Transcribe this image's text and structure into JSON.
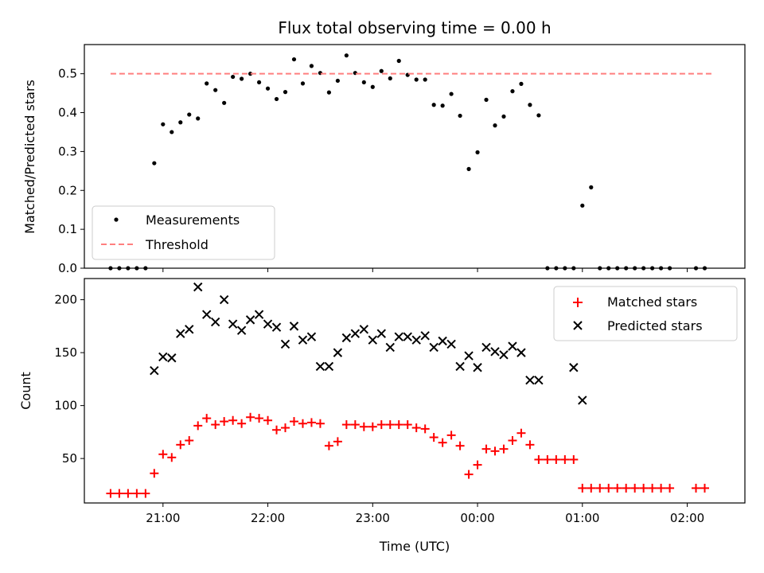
{
  "chart_data": [
    {
      "type": "scatter",
      "title": "Flux total observing time = 0.00 h",
      "ylabel": "Matched/Predicted stars",
      "xlim": [
        20.25,
        2.55
      ],
      "ylim": [
        0,
        0.575
      ],
      "yticks": [
        0.0,
        0.1,
        0.2,
        0.3,
        0.4,
        0.5
      ],
      "ytick_labels": [
        "0.0",
        "0.1",
        "0.2",
        "0.3",
        "0.4",
        "0.5"
      ],
      "legend": {
        "placement": "lower-left",
        "entries": [
          "Measurements",
          "Threshold"
        ]
      },
      "series": [
        {
          "name": "Measurements",
          "marker": "dot",
          "color": "#000000",
          "x": [
            "20:30",
            "20:35",
            "20:40",
            "20:45",
            "20:50",
            "20:55",
            "21:00",
            "21:05",
            "21:10",
            "21:15",
            "21:20",
            "21:25",
            "21:30",
            "21:35",
            "21:40",
            "21:45",
            "21:50",
            "21:55",
            "22:00",
            "22:05",
            "22:10",
            "22:15",
            "22:20",
            "22:25",
            "22:30",
            "22:35",
            "22:40",
            "22:45",
            "22:50",
            "22:55",
            "23:00",
            "23:05",
            "23:10",
            "23:15",
            "23:20",
            "23:25",
            "23:30",
            "23:35",
            "23:40",
            "23:45",
            "23:50",
            "23:55",
            "00:00",
            "00:05",
            "00:10",
            "00:15",
            "00:20",
            "00:25",
            "00:30",
            "00:35",
            "00:40",
            "00:45",
            "00:50",
            "00:55",
            "01:00",
            "01:05",
            "01:10",
            "01:15",
            "01:20",
            "01:25",
            "01:30",
            "01:35",
            "01:40",
            "01:45",
            "01:50",
            "02:05",
            "02:10"
          ],
          "y": [
            0,
            0,
            0,
            0,
            0,
            0.27,
            0.37,
            0.35,
            0.375,
            0.395,
            0.385,
            0.475,
            0.458,
            0.425,
            0.492,
            0.487,
            0.5,
            0.478,
            0.462,
            0.435,
            0.453,
            0.537,
            0.475,
            0.52,
            0.502,
            0.452,
            0.482,
            0.547,
            0.502,
            0.478,
            0.466,
            0.507,
            0.488,
            0.533,
            0.497,
            0.485,
            0.485,
            0.42,
            0.418,
            0.448,
            0.392,
            0.255,
            0.298,
            0.433,
            0.367,
            0.39,
            0.455,
            0.474,
            0.42,
            0.393,
            0,
            0,
            0,
            0,
            0.161,
            0.208,
            0,
            0,
            0,
            0,
            0,
            0,
            0,
            0,
            0,
            0,
            0
          ]
        },
        {
          "name": "Threshold",
          "style": "dashed",
          "color": "#ff7f7f",
          "x": [
            "20:30",
            "02:15"
          ],
          "y": [
            0.5,
            0.5
          ]
        }
      ]
    },
    {
      "type": "scatter",
      "xlabel": "Time (UTC)",
      "ylabel": "Count",
      "xlim": [
        20.25,
        2.55
      ],
      "ylim": [
        8,
        220
      ],
      "xticks": [
        "21:00",
        "22:00",
        "23:00",
        "00:00",
        "01:00",
        "02:00"
      ],
      "yticks": [
        50,
        100,
        150,
        200
      ],
      "ytick_labels": [
        "50",
        "100",
        "150",
        "200"
      ],
      "legend": {
        "placement": "upper-right",
        "entries": [
          "Matched stars",
          "Predicted stars"
        ]
      },
      "series": [
        {
          "name": "Matched stars",
          "marker": "plus",
          "color": "#ff0000",
          "x": [
            "20:30",
            "20:35",
            "20:40",
            "20:45",
            "20:50",
            "20:55",
            "21:00",
            "21:05",
            "21:10",
            "21:15",
            "21:20",
            "21:25",
            "21:30",
            "21:35",
            "21:40",
            "21:45",
            "21:50",
            "21:55",
            "22:00",
            "22:05",
            "22:10",
            "22:15",
            "22:20",
            "22:25",
            "22:30",
            "22:35",
            "22:40",
            "22:45",
            "22:50",
            "22:55",
            "23:00",
            "23:05",
            "23:10",
            "23:15",
            "23:20",
            "23:25",
            "23:30",
            "23:35",
            "23:40",
            "23:45",
            "23:50",
            "23:55",
            "00:00",
            "00:05",
            "00:10",
            "00:15",
            "00:20",
            "00:25",
            "00:30",
            "00:35",
            "00:40",
            "00:45",
            "00:50",
            "00:55",
            "01:00",
            "01:05",
            "01:10",
            "01:15",
            "01:20",
            "01:25",
            "01:30",
            "01:35",
            "01:40",
            "01:45",
            "01:50",
            "02:05",
            "02:10"
          ],
          "y": [
            17,
            17,
            17,
            17,
            17,
            36,
            54,
            51,
            63,
            67,
            81,
            88,
            82,
            85,
            86,
            83,
            89,
            88,
            86,
            77,
            79,
            85,
            83,
            84,
            83,
            62,
            66,
            82,
            82,
            80,
            80,
            82,
            82,
            82,
            82,
            79,
            78,
            70,
            65,
            72,
            62,
            35,
            44,
            59,
            57,
            59,
            67,
            74,
            63,
            49,
            49,
            49,
            49,
            49,
            22,
            22,
            22,
            22,
            22,
            22,
            22,
            22,
            22,
            22,
            22,
            22,
            22
          ]
        },
        {
          "name": "Predicted stars",
          "marker": "x",
          "color": "#000000",
          "x": [
            "20:55",
            "21:00",
            "21:05",
            "21:10",
            "21:15",
            "21:20",
            "21:25",
            "21:30",
            "21:35",
            "21:40",
            "21:45",
            "21:50",
            "21:55",
            "22:00",
            "22:05",
            "22:10",
            "22:15",
            "22:20",
            "22:25",
            "22:30",
            "22:35",
            "22:40",
            "22:45",
            "22:50",
            "22:55",
            "23:00",
            "23:05",
            "23:10",
            "23:15",
            "23:20",
            "23:25",
            "23:30",
            "23:35",
            "23:40",
            "23:45",
            "23:50",
            "23:55",
            "00:00",
            "00:05",
            "00:10",
            "00:15",
            "00:20",
            "00:25",
            "00:30",
            "00:35",
            "00:55",
            "01:00"
          ],
          "y": [
            133,
            146,
            145,
            168,
            172,
            212,
            186,
            179,
            200,
            177,
            171,
            181,
            186,
            177,
            174,
            158,
            175,
            162,
            165,
            137,
            137,
            150,
            164,
            168,
            172,
            162,
            168,
            155,
            165,
            165,
            162,
            166,
            155,
            161,
            158,
            137,
            147,
            136,
            155,
            151,
            148,
            156,
            150,
            124,
            124,
            136,
            105
          ]
        }
      ]
    }
  ]
}
